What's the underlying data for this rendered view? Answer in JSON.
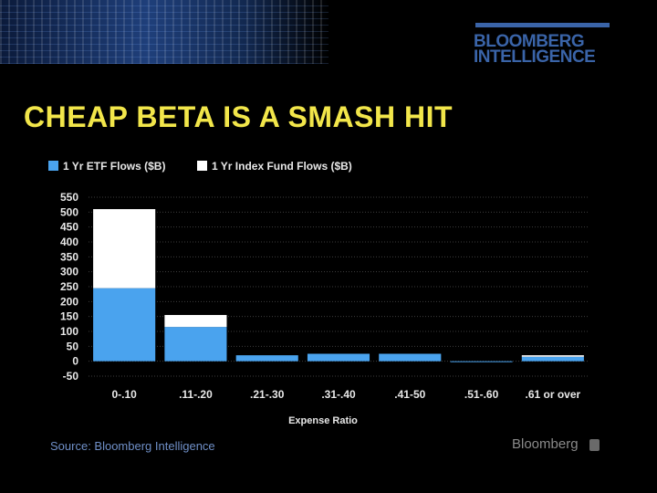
{
  "brand": {
    "line1": "BLOOMBERG",
    "line2": "INTELLIGENCE"
  },
  "headline": "CHEAP BETA IS A SMASH HIT",
  "source": "Source: Bloomberg Intelligence",
  "footer_logo": "Bloomberg",
  "colors": {
    "etf": "#4aa3ee",
    "index": "#ffffff",
    "headline": "#f2e64a",
    "brand": "#3a64a8"
  },
  "chart_data": {
    "type": "bar",
    "stacked": true,
    "categories": [
      "0-.10",
      ".11-.20",
      ".21-.30",
      ".31-.40",
      ".41-50",
      ".51-.60",
      ".61 or over"
    ],
    "series": [
      {
        "name": "1 Yr ETF Flows ($B)",
        "values": [
          245,
          115,
          20,
          25,
          25,
          -2,
          15
        ]
      },
      {
        "name": "1 Yr Index Fund Flows ($B)",
        "values": [
          265,
          40,
          0,
          0,
          0,
          0,
          5
        ]
      }
    ],
    "xlabel": "Expense Ratio",
    "ylabel": "",
    "ylim": [
      -50,
      550
    ],
    "yticks": [
      550,
      500,
      450,
      400,
      350,
      300,
      250,
      200,
      150,
      100,
      50,
      0,
      -50
    ],
    "grid": true,
    "legend": "top-left"
  }
}
